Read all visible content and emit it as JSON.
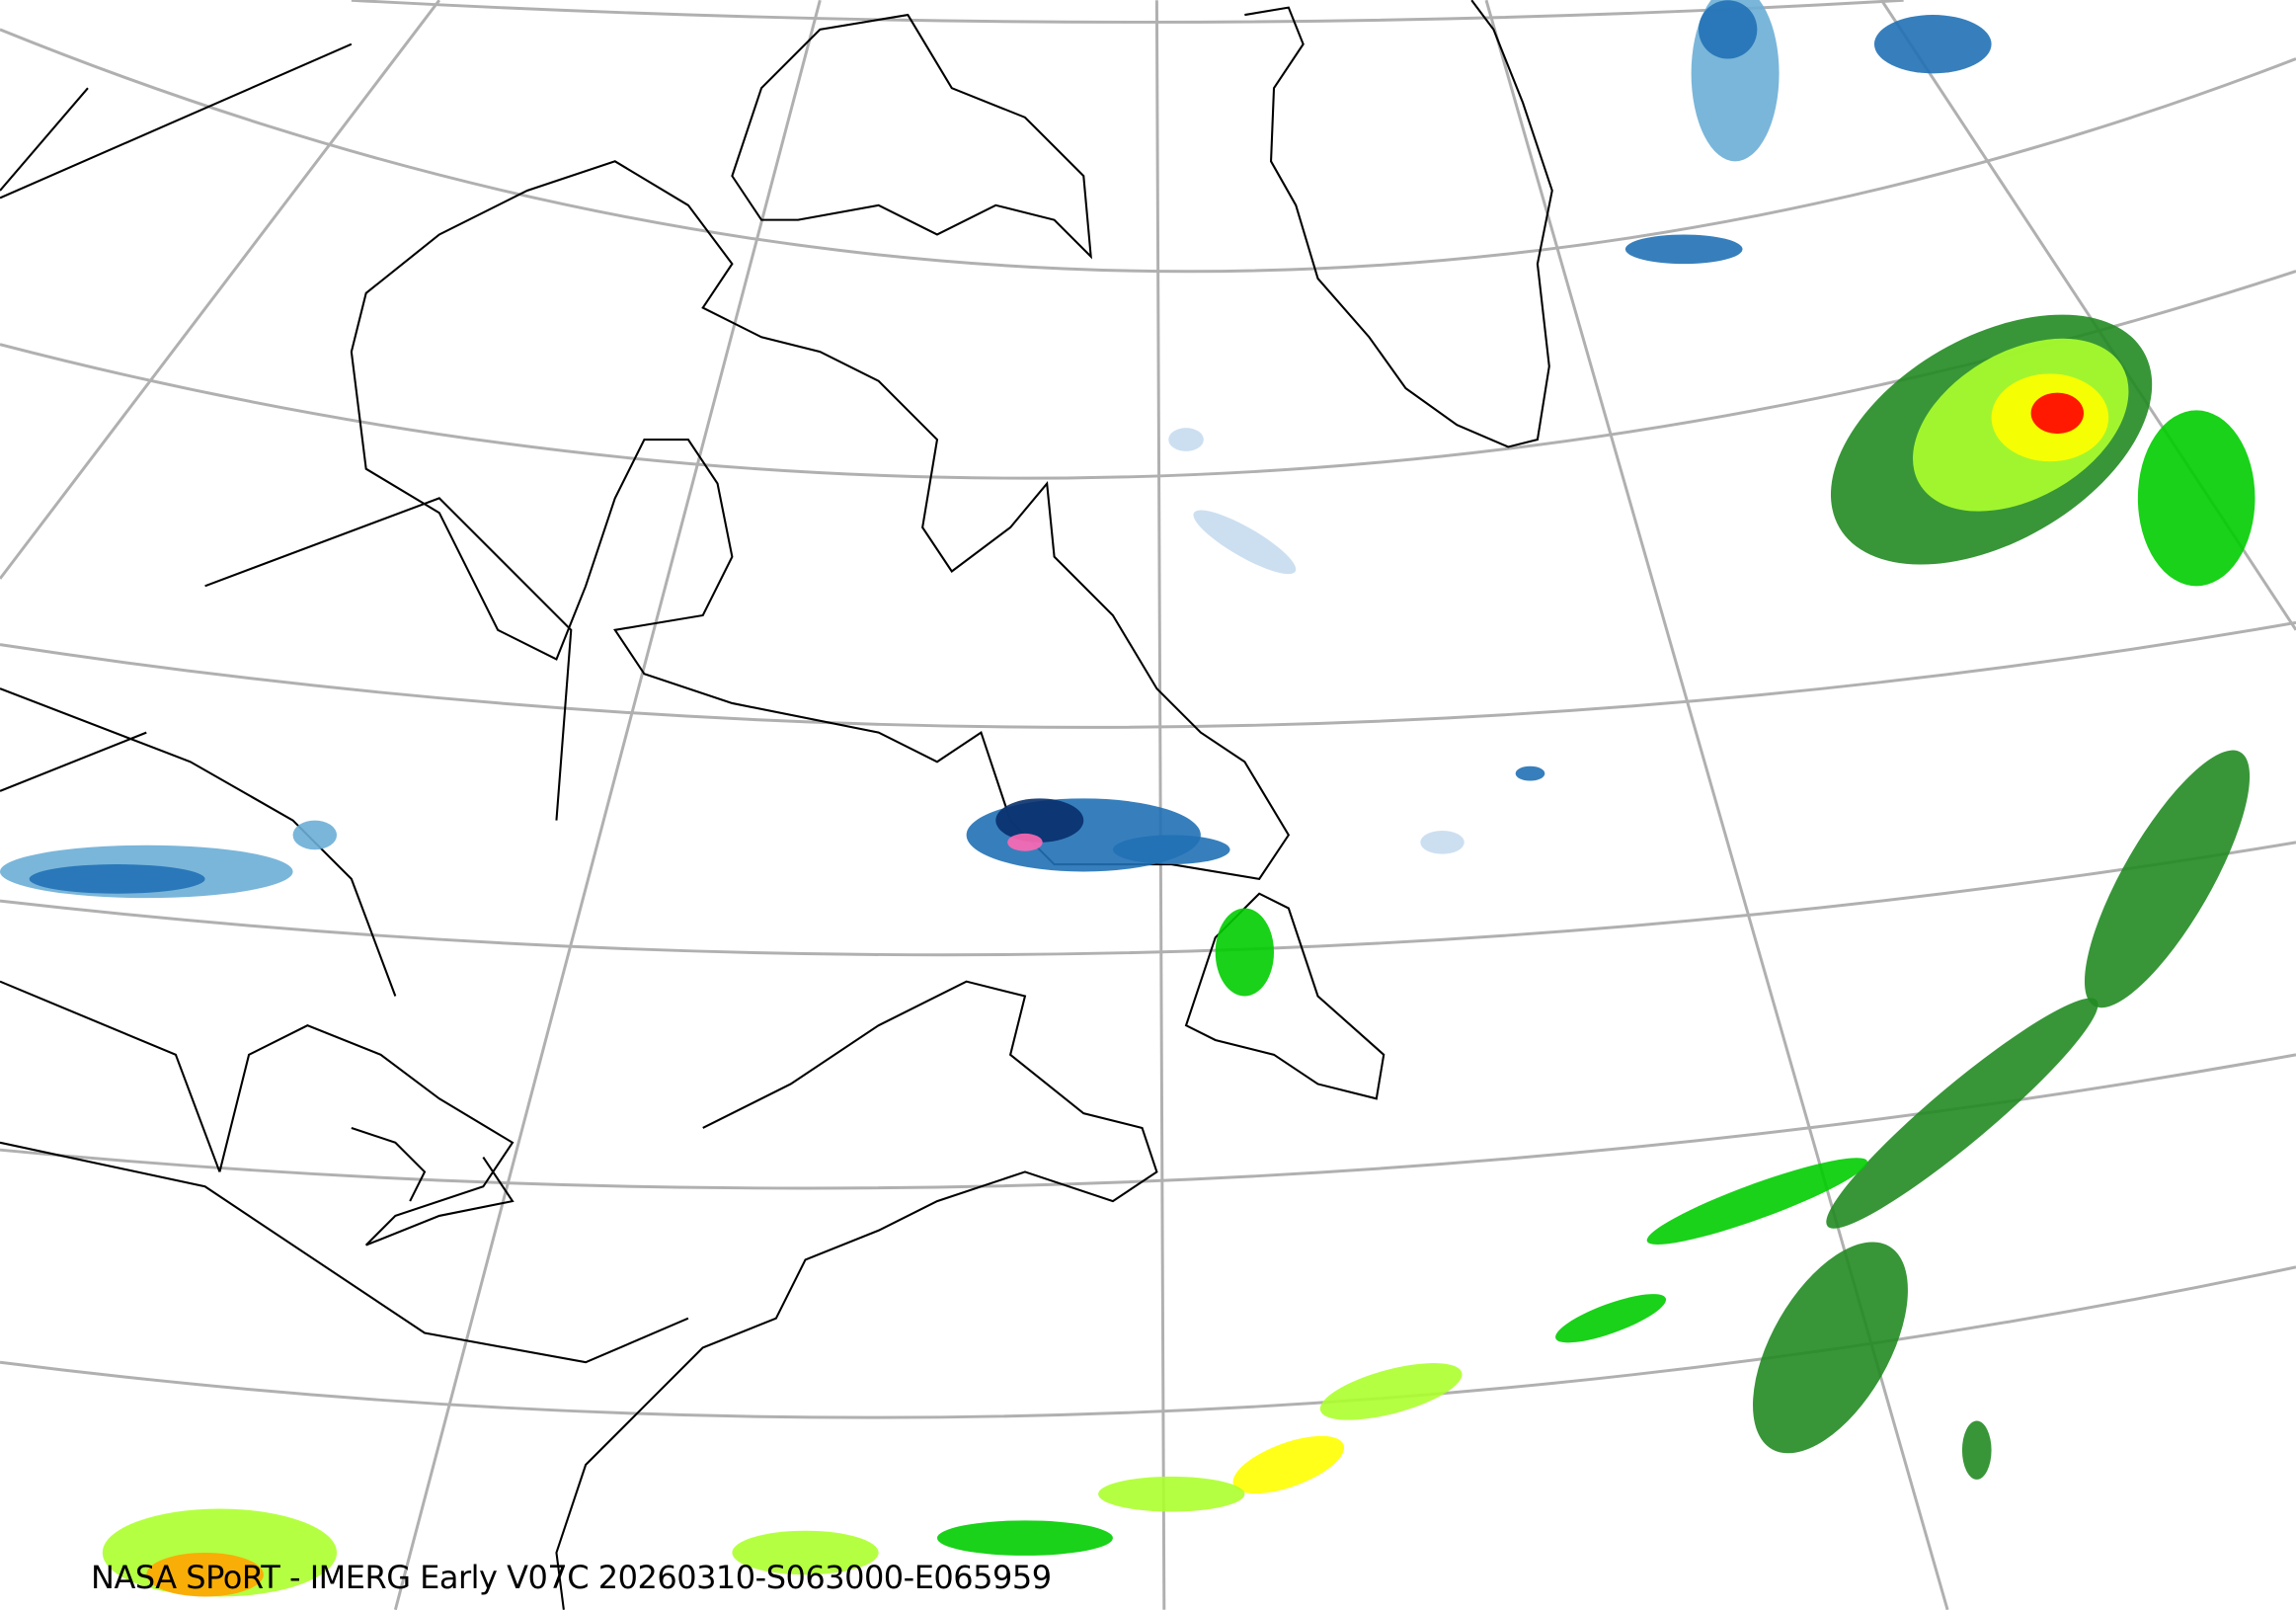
{
  "caption": "NASA SPoRT - IMERG Early V07C 20260310-S063000-E065959",
  "colors": {
    "graticule": "#b0b0b0",
    "coastline": "#000000",
    "precip_scale": [
      "#c6dbef",
      "#6baed6",
      "#2171b5",
      "#08306b",
      "#ff69b4",
      "#006400",
      "#228b22",
      "#00cd00",
      "#adff2f",
      "#ffff00",
      "#ffa500",
      "#ff0000"
    ]
  },
  "map": {
    "projection": "polar-stereographic",
    "region": "North Atlantic / Eastern Canada / Greenland",
    "features": [
      "graticule",
      "coastlines",
      "state-province-borders",
      "precipitation-rate"
    ]
  }
}
